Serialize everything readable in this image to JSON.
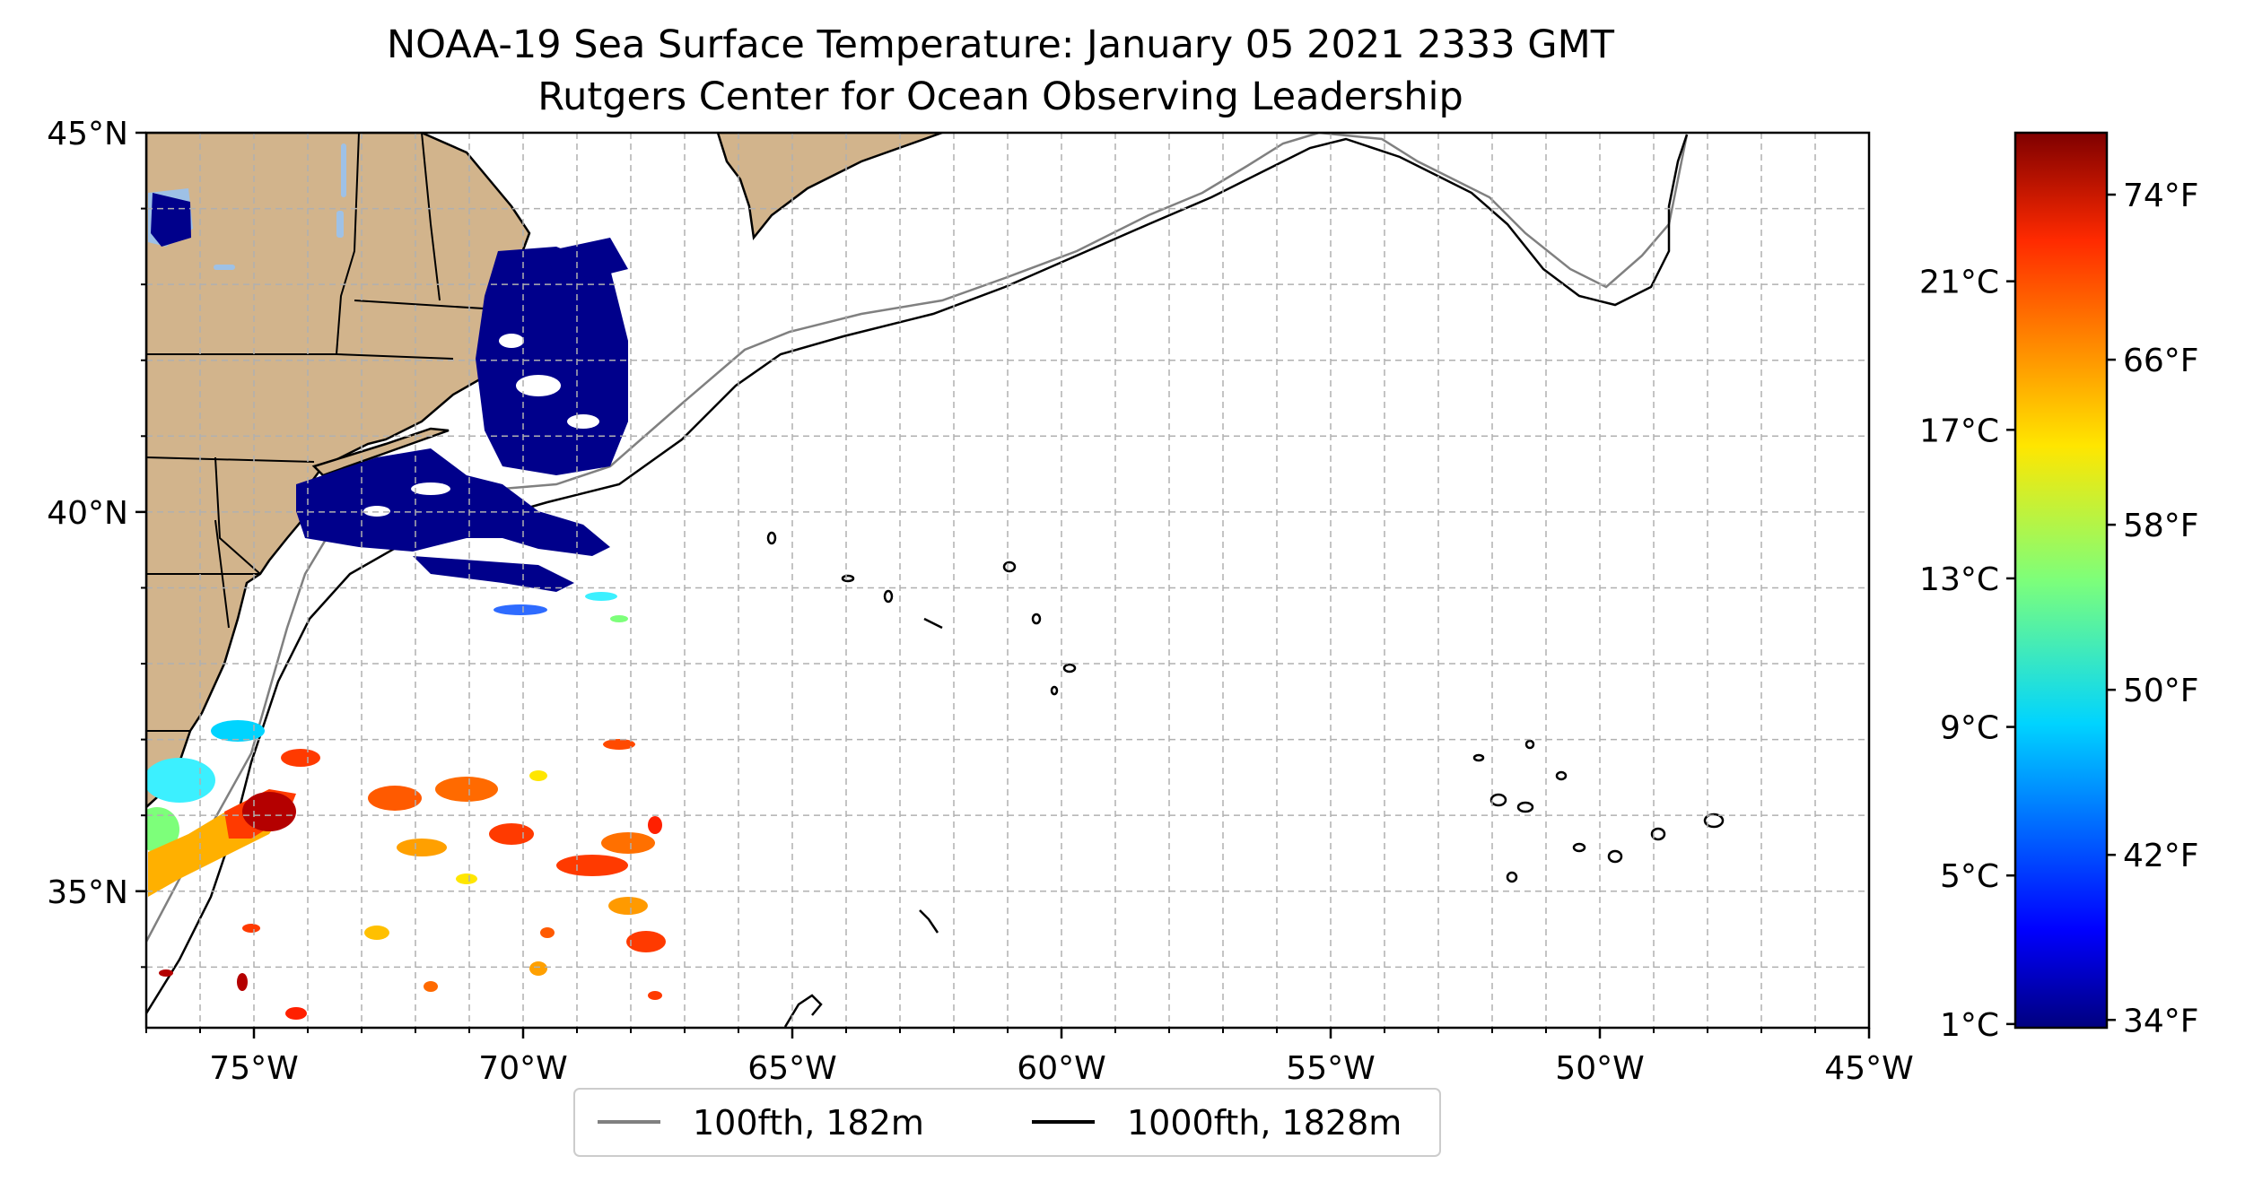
{
  "title": {
    "line1": "NOAA-19 Sea Surface Temperature: January 05 2021 2333 GMT",
    "line2": "Rutgers Center for Ocean Observing Leadership"
  },
  "map": {
    "lon_range": [
      -77,
      -45
    ],
    "lat_range": [
      33.2,
      45
    ],
    "land_color": "#d2b48c",
    "lake_color": "#9ec1e6",
    "grid": "dashed gray, 1-degree",
    "lon_ticks": [
      {
        "value": -75,
        "label": "75°W"
      },
      {
        "value": -70,
        "label": "70°W"
      },
      {
        "value": -65,
        "label": "65°W"
      },
      {
        "value": -60,
        "label": "60°W"
      },
      {
        "value": -55,
        "label": "55°W"
      },
      {
        "value": -50,
        "label": "50°W"
      },
      {
        "value": -45,
        "label": "45°W"
      }
    ],
    "lat_ticks": [
      {
        "value": 45,
        "label": "45°N"
      },
      {
        "value": 40,
        "label": "40°N"
      },
      {
        "value": 35,
        "label": "35°N"
      }
    ]
  },
  "colorbar": {
    "colormap": "jet",
    "range_c": [
      0.9,
      25
    ],
    "celsius_ticks": [
      {
        "value": 1,
        "label": "1°C"
      },
      {
        "value": 5,
        "label": "5°C"
      },
      {
        "value": 9,
        "label": "9°C"
      },
      {
        "value": 13,
        "label": "13°C"
      },
      {
        "value": 17,
        "label": "17°C"
      },
      {
        "value": 21,
        "label": "21°C"
      }
    ],
    "fahrenheit_ticks": [
      {
        "value": 34,
        "label": "34°F"
      },
      {
        "value": 42,
        "label": "42°F"
      },
      {
        "value": 50,
        "label": "50°F"
      },
      {
        "value": 58,
        "label": "58°F"
      },
      {
        "value": 66,
        "label": "66°F"
      },
      {
        "value": 74,
        "label": "74°F"
      }
    ]
  },
  "legend": {
    "items": [
      {
        "label": "100fth, 182m",
        "color": "#808080"
      },
      {
        "label": "1000fth, 1828m",
        "color": "#000000"
      }
    ]
  }
}
